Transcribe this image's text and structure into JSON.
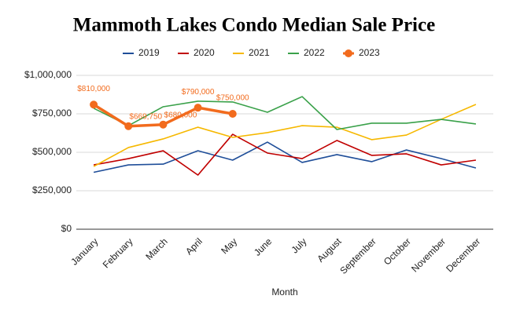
{
  "chart_data": {
    "type": "line",
    "title": "Mammoth Lakes Condo Median Sale Price",
    "xlabel": "Month",
    "categories": [
      "January",
      "February",
      "March",
      "April",
      "May",
      "June",
      "July",
      "August",
      "September",
      "October",
      "November",
      "December"
    ],
    "ylim": [
      0,
      1000000
    ],
    "yticks": [
      {
        "value": 0,
        "label": "$0"
      },
      {
        "value": 250000,
        "label": "$250,000"
      },
      {
        "value": 500000,
        "label": "$500,000"
      },
      {
        "value": 750000,
        "label": "$750,000"
      },
      {
        "value": 1000000,
        "label": "$1,000,000"
      }
    ],
    "grid": true,
    "legend": "top",
    "series": [
      {
        "name": "2019",
        "color": "#1f4e99",
        "values": [
          370000,
          418000,
          423000,
          510000,
          449000,
          566000,
          434000,
          485000,
          439000,
          515000,
          459000,
          398000
        ]
      },
      {
        "name": "2020",
        "color": "#c00000",
        "values": [
          418000,
          459000,
          510000,
          352000,
          617000,
          495000,
          459000,
          577000,
          480000,
          490000,
          418000,
          449000
        ]
      },
      {
        "name": "2021",
        "color": "#f6b800",
        "values": [
          408000,
          531000,
          587000,
          663000,
          597000,
          628000,
          673000,
          663000,
          582000,
          612000,
          714000,
          811000
        ]
      },
      {
        "name": "2022",
        "color": "#3aa14a",
        "values": [
          786000,
          673000,
          796000,
          832000,
          827000,
          760000,
          862000,
          648000,
          689000,
          689000,
          714000,
          684000
        ]
      },
      {
        "name": "2023",
        "color": "#f26b1d",
        "markers": true,
        "values": [
          810000,
          669750,
          680000,
          790000,
          750000,
          null,
          null,
          null,
          null,
          null,
          null,
          null
        ],
        "value_labels": [
          "$810,000",
          "$669,750",
          "$680,000",
          "$790,000",
          "$750,000",
          null,
          null,
          null,
          null,
          null,
          null,
          null
        ]
      }
    ]
  }
}
